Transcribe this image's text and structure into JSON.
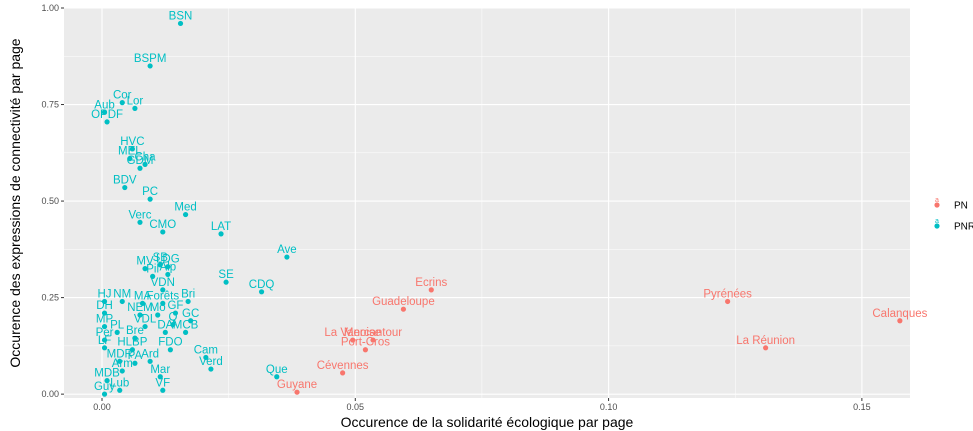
{
  "chart_data": {
    "type": "scatter",
    "title": "",
    "xlabel": "Occurence de la solidarité écologique par page",
    "ylabel": "Occurence des expressions de connectivité par page",
    "xlim": [
      -0.0075,
      0.1595
    ],
    "ylim": [
      -0.01,
      1.0
    ],
    "x_ticks": [
      0.0,
      0.05,
      0.1,
      0.15
    ],
    "x_tick_labels": [
      "0.00",
      "0.05",
      "0.10",
      "0.15"
    ],
    "y_ticks": [
      0.0,
      0.25,
      0.5,
      0.75,
      1.0
    ],
    "y_tick_labels": [
      "0.00",
      "0.25",
      "0.50",
      "0.75",
      "1.00"
    ],
    "grid": true,
    "legend_position": "right",
    "series": [
      {
        "name": "PN",
        "color": "#F8766D",
        "points": [
          {
            "label": "Calanques",
            "x": 0.1575,
            "y": 0.19
          },
          {
            "label": "Pyrénées",
            "x": 0.1235,
            "y": 0.24
          },
          {
            "label": "La Réunion",
            "x": 0.131,
            "y": 0.12
          },
          {
            "label": "Ecrins",
            "x": 0.065,
            "y": 0.27
          },
          {
            "label": "Guadeloupe",
            "x": 0.0595,
            "y": 0.22
          },
          {
            "label": "Mercantour",
            "x": 0.0535,
            "y": 0.14
          },
          {
            "label": "La Vanoise",
            "x": 0.0495,
            "y": 0.14
          },
          {
            "label": "Port-Cros",
            "x": 0.052,
            "y": 0.115
          },
          {
            "label": "Cévennes",
            "x": 0.0475,
            "y": 0.055
          },
          {
            "label": "Guyane",
            "x": 0.0385,
            "y": 0.005
          }
        ]
      },
      {
        "name": "PNR",
        "color": "#00BFC4",
        "points": [
          {
            "label": "BSN",
            "x": 0.0155,
            "y": 0.96
          },
          {
            "label": "BSPM",
            "x": 0.0095,
            "y": 0.85
          },
          {
            "label": "Cor",
            "x": 0.004,
            "y": 0.755
          },
          {
            "label": "Lor",
            "x": 0.0065,
            "y": 0.74
          },
          {
            "label": "Aub",
            "x": 0.0005,
            "y": 0.73
          },
          {
            "label": "OPDF",
            "x": 0.001,
            "y": 0.705
          },
          {
            "label": "HVC",
            "x": 0.006,
            "y": 0.635
          },
          {
            "label": "MEL",
            "x": 0.0055,
            "y": 0.61
          },
          {
            "label": "Cha",
            "x": 0.0085,
            "y": 0.595
          },
          {
            "label": "GDM",
            "x": 0.0075,
            "y": 0.585
          },
          {
            "label": "BDV",
            "x": 0.0045,
            "y": 0.535
          },
          {
            "label": "PC",
            "x": 0.0095,
            "y": 0.505
          },
          {
            "label": "Med",
            "x": 0.0165,
            "y": 0.465
          },
          {
            "label": "Verc",
            "x": 0.0075,
            "y": 0.445
          },
          {
            "label": "LAT",
            "x": 0.0235,
            "y": 0.415
          },
          {
            "label": "CMO",
            "x": 0.012,
            "y": 0.42
          },
          {
            "label": "Ave",
            "x": 0.0365,
            "y": 0.355
          },
          {
            "label": "SB",
            "x": 0.0115,
            "y": 0.335
          },
          {
            "label": "MV",
            "x": 0.0085,
            "y": 0.325
          },
          {
            "label": "LDG",
            "x": 0.013,
            "y": 0.33
          },
          {
            "label": "Pil",
            "x": 0.01,
            "y": 0.305
          },
          {
            "label": "Alp",
            "x": 0.013,
            "y": 0.31
          },
          {
            "label": "SE",
            "x": 0.0245,
            "y": 0.29
          },
          {
            "label": "CDQ",
            "x": 0.0315,
            "y": 0.265
          },
          {
            "label": "VDN",
            "x": 0.012,
            "y": 0.27
          },
          {
            "label": "HJ",
            "x": 0.0005,
            "y": 0.24
          },
          {
            "label": "NM",
            "x": 0.004,
            "y": 0.24
          },
          {
            "label": "MA",
            "x": 0.008,
            "y": 0.235
          },
          {
            "label": "Forêts",
            "x": 0.012,
            "y": 0.235
          },
          {
            "label": "Bri",
            "x": 0.017,
            "y": 0.24
          },
          {
            "label": "DH",
            "x": 0.0005,
            "y": 0.21
          },
          {
            "label": "NEM",
            "x": 0.0075,
            "y": 0.205
          },
          {
            "label": "Mo",
            "x": 0.011,
            "y": 0.205
          },
          {
            "label": "GF",
            "x": 0.0145,
            "y": 0.21
          },
          {
            "label": "MP",
            "x": 0.0005,
            "y": 0.175
          },
          {
            "label": "VDL",
            "x": 0.0085,
            "y": 0.175
          },
          {
            "label": "GC",
            "x": 0.0175,
            "y": 0.19
          },
          {
            "label": "Q",
            "x": 0.014,
            "y": 0.18
          },
          {
            "label": "DA",
            "x": 0.0125,
            "y": 0.16
          },
          {
            "label": "MCB",
            "x": 0.0165,
            "y": 0.16
          },
          {
            "label": "PL",
            "x": 0.003,
            "y": 0.16
          },
          {
            "label": "Bre",
            "x": 0.0065,
            "y": 0.145
          },
          {
            "label": "Per",
            "x": 0.0005,
            "y": 0.14
          },
          {
            "label": "LF",
            "x": 0.0005,
            "y": 0.12
          },
          {
            "label": "HLBP",
            "x": 0.006,
            "y": 0.115
          },
          {
            "label": "FDO",
            "x": 0.0135,
            "y": 0.115
          },
          {
            "label": "Cam",
            "x": 0.0205,
            "y": 0.095
          },
          {
            "label": "MDR",
            "x": 0.0035,
            "y": 0.085
          },
          {
            "label": "PA",
            "x": 0.0065,
            "y": 0.08
          },
          {
            "label": "Ard",
            "x": 0.0095,
            "y": 0.085
          },
          {
            "label": "Verd",
            "x": 0.0215,
            "y": 0.065
          },
          {
            "label": "Arm",
            "x": 0.004,
            "y": 0.06
          },
          {
            "label": "Mar",
            "x": 0.0115,
            "y": 0.045
          },
          {
            "label": "Que",
            "x": 0.0345,
            "y": 0.045
          },
          {
            "label": "MDB",
            "x": 0.001,
            "y": 0.035
          },
          {
            "label": "VF",
            "x": 0.012,
            "y": 0.01
          },
          {
            "label": "Lub",
            "x": 0.0035,
            "y": 0.01
          },
          {
            "label": "Guy",
            "x": 0.0005,
            "y": 0.0
          }
        ]
      }
    ]
  }
}
